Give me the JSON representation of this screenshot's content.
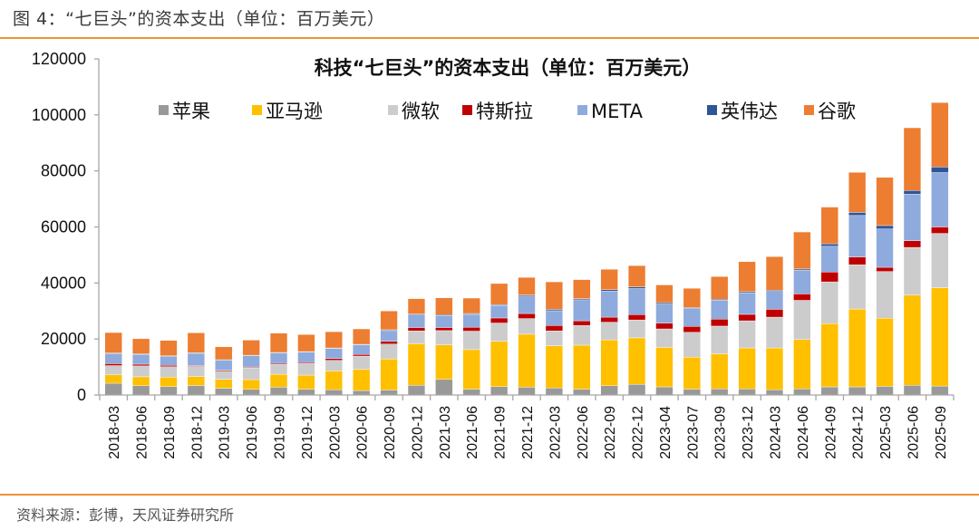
{
  "figure": {
    "caption": "图 4：“七巨头”的资本支出（单位：百万美元）",
    "source": "资料来源：彭博，天风证券研究所"
  },
  "chart_data": {
    "type": "bar",
    "stacked": true,
    "title": "科技“七巨头”的资本支出（单位：百万美元）",
    "xlabel": "",
    "ylabel": "",
    "ylim": [
      0,
      120000
    ],
    "yticks": [
      0,
      20000,
      40000,
      60000,
      80000,
      100000,
      120000
    ],
    "grid": false,
    "legend_position": "top",
    "categories": [
      "2018-03",
      "2018-06",
      "2018-09",
      "2018-12",
      "2019-03",
      "2019-06",
      "2019-09",
      "2019-12",
      "2020-03",
      "2020-06",
      "2020-09",
      "2020-12",
      "2021-03",
      "2021-06",
      "2021-09",
      "2021-12",
      "2022-03",
      "2022-06",
      "2022-09",
      "2022-12",
      "2023-04",
      "2023-07",
      "2023-09",
      "2023-12",
      "2024-03",
      "2024-06",
      "2024-09",
      "2024-12",
      "2025-03",
      "2025-06",
      "2025-09"
    ],
    "series": [
      {
        "name": "苹果",
        "color": "#999999",
        "values": [
          4200,
          3300,
          3000,
          3400,
          2400,
          2000,
          2800,
          2100,
          1900,
          1600,
          1800,
          3500,
          5600,
          2100,
          3000,
          2800,
          2500,
          2100,
          3300,
          3800,
          2900,
          2100,
          2200,
          2200,
          1900,
          2200,
          2900,
          2900,
          3100,
          3500,
          3200
        ]
      },
      {
        "name": "亚马逊",
        "color": "#ffc000",
        "values": [
          3000,
          3200,
          3400,
          3200,
          3200,
          3500,
          4600,
          5000,
          6700,
          7600,
          11100,
          14800,
          12300,
          14100,
          16200,
          18900,
          15100,
          15700,
          16400,
          16600,
          14100,
          11400,
          12500,
          14600,
          14900,
          17600,
          22600,
          27800,
          24300,
          32200,
          35100
        ]
      },
      {
        "name": "微软",
        "color": "#cccccc",
        "values": [
          3300,
          3900,
          3700,
          3600,
          2900,
          4200,
          3500,
          4100,
          3800,
          4700,
          5300,
          4600,
          5100,
          6600,
          6500,
          5600,
          5300,
          7000,
          6300,
          6400,
          6600,
          8900,
          9900,
          9700,
          11000,
          14000,
          14900,
          15800,
          16700,
          17000,
          19400
        ]
      },
      {
        "name": "特斯拉",
        "color": "#c00000",
        "values": [
          700,
          600,
          500,
          300,
          300,
          300,
          400,
          400,
          600,
          600,
          1000,
          1200,
          1100,
          1400,
          1800,
          1800,
          1900,
          1700,
          1800,
          1900,
          2100,
          2100,
          2500,
          2300,
          2800,
          2300,
          3500,
          2800,
          1500,
          2400,
          2300
        ]
      },
      {
        "name": "META",
        "color": "#8faadc",
        "values": [
          3600,
          3500,
          3200,
          4400,
          3700,
          4100,
          3700,
          3700,
          3600,
          3400,
          3800,
          4500,
          4300,
          4600,
          4500,
          6200,
          5300,
          7500,
          9300,
          9300,
          6800,
          6400,
          6800,
          7700,
          6400,
          8500,
          9200,
          14800,
          13700,
          16600,
          19400
        ]
      },
      {
        "name": "英伟达",
        "color": "#2f5597",
        "values": [
          200,
          200,
          200,
          200,
          100,
          100,
          200,
          200,
          200,
          200,
          300,
          300,
          300,
          300,
          300,
          400,
          500,
          400,
          500,
          600,
          500,
          300,
          300,
          400,
          400,
          400,
          900,
          1100,
          1200,
          1300,
          2000
        ]
      },
      {
        "name": "谷歌",
        "color": "#ed7d31",
        "values": [
          7300,
          5400,
          5500,
          7100,
          4600,
          5400,
          6900,
          6100,
          5800,
          5500,
          6700,
          5500,
          6000,
          5500,
          7500,
          6300,
          9800,
          6800,
          7300,
          7600,
          6300,
          6900,
          8100,
          10700,
          12000,
          13200,
          13100,
          14300,
          17200,
          22400,
          23000
        ]
      }
    ]
  }
}
